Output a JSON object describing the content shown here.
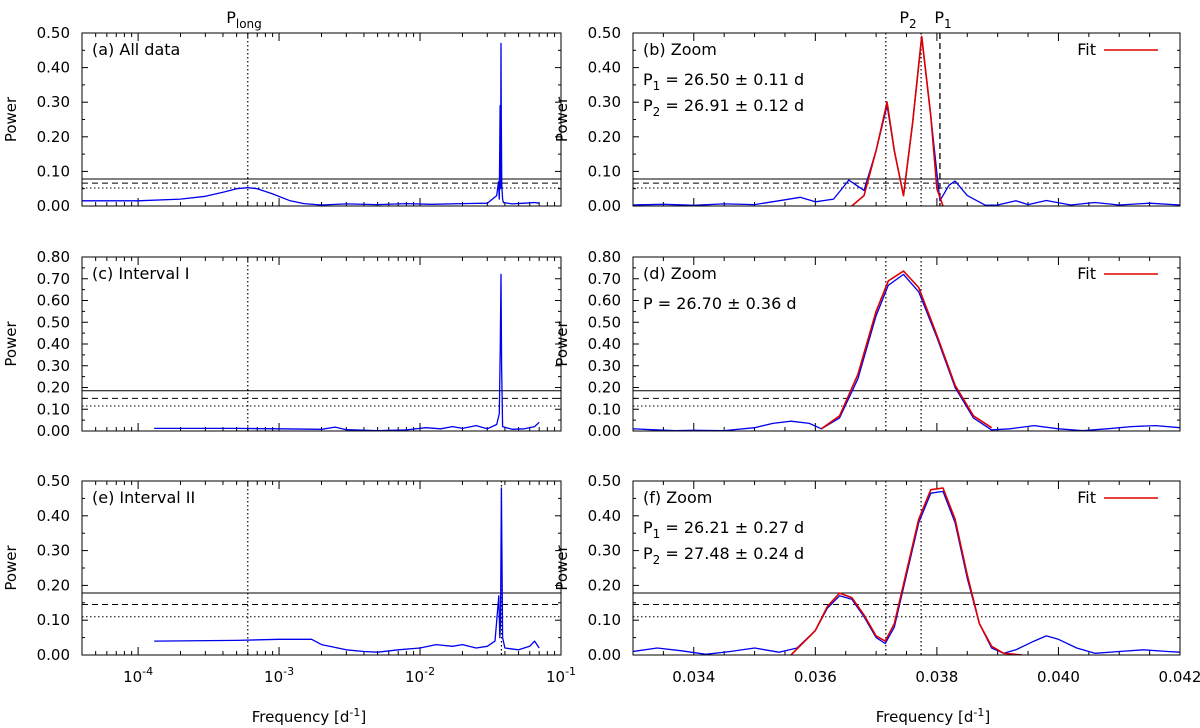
{
  "figure": {
    "top_labels": {
      "p_long": {
        "base": "P",
        "sub": "long"
      },
      "p2": {
        "base": "P",
        "sub": "2"
      },
      "p1": {
        "base": "P",
        "sub": "1"
      }
    },
    "xlabel": {
      "base": "Frequency [d",
      "sup": "-1",
      "tail": "]"
    }
  },
  "colors": {
    "periodogram": "#0000ee",
    "fit": "#dd0000",
    "axes": "#000000"
  },
  "chart_data": [
    {
      "id": "a",
      "type": "line",
      "xscale": "log",
      "label": "(a) All data",
      "ylabel": "Power",
      "xlim": [
        4e-05,
        0.1
      ],
      "ylim": [
        0,
        0.5
      ],
      "yticks": [
        "0.00",
        "0.10",
        "0.20",
        "0.30",
        "0.40",
        "0.50"
      ],
      "xticks": [],
      "xlabel": "",
      "thresholds": [
        0.078,
        0.066,
        0.052
      ],
      "vlines": [
        {
          "x": 0.0006,
          "style": "dotted"
        }
      ],
      "series": [
        {
          "name": "Periodogram",
          "color": "#0000ee",
          "x": [
            4e-05,
            0.0001,
            0.0002,
            0.0003,
            0.0004,
            0.0005,
            0.0006,
            0.0007,
            0.0009,
            0.0012,
            0.0015,
            0.002,
            0.003,
            0.005,
            0.008,
            0.012,
            0.02,
            0.03,
            0.035,
            0.036,
            0.0365,
            0.037,
            0.0373,
            0.0375,
            0.0377,
            0.038,
            0.0385,
            0.039,
            0.045,
            0.055,
            0.065,
            0.07
          ],
          "y": [
            0.015,
            0.015,
            0.02,
            0.028,
            0.04,
            0.05,
            0.053,
            0.05,
            0.035,
            0.015,
            0.007,
            0.003,
            0.006,
            0.004,
            0.007,
            0.005,
            0.007,
            0.008,
            0.03,
            0.07,
            0.02,
            0.29,
            0.05,
            0.47,
            0.25,
            0.06,
            0.02,
            0.01,
            0.006,
            0.008,
            0.01,
            0.008
          ]
        }
      ]
    },
    {
      "id": "b",
      "type": "line",
      "xscale": "linear",
      "label": "(b) Zoom",
      "ylabel": "Power",
      "xlim": [
        0.033,
        0.042
      ],
      "ylim": [
        0,
        0.5
      ],
      "yticks": [
        "0.00",
        "0.10",
        "0.20",
        "0.30",
        "0.40",
        "0.50"
      ],
      "xticks": [],
      "xlabel": "",
      "thresholds": [
        0.078,
        0.066,
        0.052
      ],
      "vlines": [
        {
          "x": 0.03716,
          "style": "dotted"
        },
        {
          "x": 0.03774,
          "style": "dotted"
        },
        {
          "x": 0.03805,
          "style": "dashed"
        }
      ],
      "legend": "Fit",
      "annotations": [
        {
          "base": "P",
          "sub": "1",
          "rest": " = 26.50 ± 0.11 d"
        },
        {
          "base": "P",
          "sub": "2",
          "rest": " = 26.91 ± 0.12 d"
        }
      ],
      "series": [
        {
          "name": "Periodogram",
          "color": "#0000ee",
          "x": [
            0.033,
            0.0335,
            0.034,
            0.0345,
            0.035,
            0.0355,
            0.03575,
            0.036,
            0.0363,
            0.03655,
            0.0368,
            0.037,
            0.03718,
            0.0373,
            0.03745,
            0.0376,
            0.03775,
            0.0379,
            0.03805,
            0.0382,
            0.0383,
            0.0385,
            0.0388,
            0.039,
            0.0393,
            0.0395,
            0.0398,
            0.0402,
            0.0406,
            0.041,
            0.0415,
            0.042
          ],
          "y": [
            0.003,
            0.005,
            0.002,
            0.006,
            0.004,
            0.018,
            0.025,
            0.012,
            0.02,
            0.075,
            0.045,
            0.16,
            0.29,
            0.16,
            0.03,
            0.24,
            0.49,
            0.26,
            0.015,
            0.06,
            0.072,
            0.03,
            0.002,
            0.003,
            0.015,
            0.004,
            0.016,
            0.003,
            0.01,
            0.003,
            0.008,
            0.003
          ]
        },
        {
          "name": "Fit",
          "color": "#dd0000",
          "x": [
            0.0366,
            0.0368,
            0.037,
            0.03718,
            0.0373,
            0.03745,
            0.0376,
            0.03775,
            0.0379,
            0.038,
            0.0381
          ],
          "y": [
            0.0,
            0.03,
            0.16,
            0.3,
            0.16,
            0.03,
            0.24,
            0.49,
            0.26,
            0.05,
            0.0
          ]
        }
      ]
    },
    {
      "id": "c",
      "type": "line",
      "xscale": "log",
      "label": "(c) Interval I",
      "ylabel": "Power",
      "xlim": [
        4e-05,
        0.1
      ],
      "ylim": [
        0,
        0.8
      ],
      "yticks": [
        "0.00",
        "0.10",
        "0.20",
        "0.30",
        "0.40",
        "0.50",
        "0.60",
        "0.70",
        "0.80"
      ],
      "xticks": [],
      "xlabel": "",
      "thresholds": [
        0.185,
        0.15,
        0.115
      ],
      "vlines": [
        {
          "x": 0.0006,
          "style": "dotted"
        }
      ],
      "series": [
        {
          "name": "Periodogram",
          "color": "#0000ee",
          "x": [
            0.00013,
            0.0005,
            0.001,
            0.002,
            0.0025,
            0.003,
            0.005,
            0.008,
            0.011,
            0.014,
            0.017,
            0.02,
            0.025,
            0.03,
            0.035,
            0.0365,
            0.0371,
            0.0375,
            0.0379,
            0.0385,
            0.045,
            0.055,
            0.065,
            0.07
          ],
          "y": [
            0.012,
            0.012,
            0.01,
            0.008,
            0.018,
            0.006,
            0.002,
            0.005,
            0.015,
            0.01,
            0.02,
            0.012,
            0.025,
            0.01,
            0.03,
            0.08,
            0.4,
            0.72,
            0.3,
            0.02,
            0.008,
            0.01,
            0.02,
            0.04
          ]
        }
      ]
    },
    {
      "id": "d",
      "type": "line",
      "xscale": "linear",
      "label": "(d) Zoom",
      "ylabel": "Power",
      "xlim": [
        0.033,
        0.042
      ],
      "ylim": [
        0,
        0.8
      ],
      "yticks": [
        "0.00",
        "0.10",
        "0.20",
        "0.30",
        "0.40",
        "0.50",
        "0.60",
        "0.70",
        "0.80"
      ],
      "xticks": [],
      "xlabel": "",
      "thresholds": [
        0.185,
        0.15,
        0.115
      ],
      "vlines": [
        {
          "x": 0.03716,
          "style": "dotted"
        },
        {
          "x": 0.03774,
          "style": "dotted"
        }
      ],
      "legend": "Fit",
      "annotations": [
        {
          "base": "P",
          "sub": "",
          "rest": " = 26.70 ± 0.36 d"
        }
      ],
      "series": [
        {
          "name": "Periodogram",
          "color": "#0000ee",
          "x": [
            0.033,
            0.0333,
            0.0337,
            0.034,
            0.0345,
            0.035,
            0.0353,
            0.0356,
            0.0359,
            0.0361,
            0.0364,
            0.0367,
            0.037,
            0.0372,
            0.03745,
            0.0377,
            0.038,
            0.0383,
            0.0386,
            0.0389,
            0.0392,
            0.0396,
            0.04,
            0.0404,
            0.0408,
            0.0412,
            0.0416,
            0.042
          ],
          "y": [
            0.01,
            0.006,
            0.002,
            0.003,
            0.002,
            0.015,
            0.035,
            0.045,
            0.035,
            0.01,
            0.06,
            0.24,
            0.53,
            0.67,
            0.72,
            0.64,
            0.43,
            0.2,
            0.06,
            0.005,
            0.01,
            0.025,
            0.01,
            0.002,
            0.01,
            0.02,
            0.025,
            0.015
          ]
        },
        {
          "name": "Fit",
          "color": "#dd0000",
          "x": [
            0.0361,
            0.0364,
            0.0367,
            0.037,
            0.0372,
            0.03745,
            0.0377,
            0.038,
            0.0383,
            0.0386,
            0.0389
          ],
          "y": [
            0.01,
            0.07,
            0.26,
            0.55,
            0.69,
            0.735,
            0.66,
            0.44,
            0.21,
            0.07,
            0.015
          ]
        }
      ]
    },
    {
      "id": "e",
      "type": "line",
      "xscale": "log",
      "label": "(e) Interval II",
      "ylabel": "Power",
      "xlim": [
        4e-05,
        0.1
      ],
      "ylim": [
        0,
        0.5
      ],
      "yticks": [
        "0.00",
        "0.10",
        "0.20",
        "0.30",
        "0.40",
        "0.50"
      ],
      "xticks": [
        "10-4",
        "10-3",
        "10-2",
        "10-1"
      ],
      "xlabel": "Frequency",
      "thresholds": [
        0.178,
        0.145,
        0.11
      ],
      "vlines": [
        {
          "x": 0.0006,
          "style": "dotted"
        },
        {
          "x": 0.0378,
          "style": "dotted"
        }
      ],
      "series": [
        {
          "name": "Periodogram",
          "color": "#0000ee",
          "x": [
            0.00013,
            0.0005,
            0.001,
            0.0017,
            0.002,
            0.003,
            0.004,
            0.005,
            0.007,
            0.01,
            0.013,
            0.017,
            0.02,
            0.025,
            0.03,
            0.034,
            0.0362,
            0.0368,
            0.0372,
            0.0378,
            0.0385,
            0.04,
            0.05,
            0.06,
            0.065,
            0.07
          ],
          "y": [
            0.04,
            0.042,
            0.045,
            0.045,
            0.03,
            0.015,
            0.01,
            0.008,
            0.015,
            0.02,
            0.03,
            0.025,
            0.03,
            0.02,
            0.025,
            0.04,
            0.17,
            0.05,
            0.09,
            0.48,
            0.05,
            0.02,
            0.015,
            0.025,
            0.04,
            0.02
          ]
        }
      ]
    },
    {
      "id": "f",
      "type": "line",
      "xscale": "linear",
      "label": "(f) Zoom",
      "ylabel": "Power",
      "xlim": [
        0.033,
        0.042
      ],
      "ylim": [
        0,
        0.5
      ],
      "yticks": [
        "0.00",
        "0.10",
        "0.20",
        "0.30",
        "0.40",
        "0.50"
      ],
      "xticks": [
        "0.034",
        "0.036",
        "0.038",
        "0.040",
        "0.042"
      ],
      "xlabel": "Frequency",
      "thresholds": [
        0.178,
        0.145,
        0.11
      ],
      "vlines": [
        {
          "x": 0.03716,
          "style": "dotted"
        },
        {
          "x": 0.03774,
          "style": "dotted"
        }
      ],
      "legend": "Fit",
      "annotations": [
        {
          "base": "P",
          "sub": "1",
          "rest": " = 26.21 ± 0.27 d"
        },
        {
          "base": "P",
          "sub": "2",
          "rest": " = 27.48 ± 0.24 d"
        }
      ],
      "series": [
        {
          "name": "Periodogram",
          "color": "#0000ee",
          "x": [
            0.033,
            0.0334,
            0.0338,
            0.0342,
            0.0346,
            0.035,
            0.0354,
            0.0357,
            0.036,
            0.0362,
            0.0364,
            0.0366,
            0.0368,
            0.037,
            0.03715,
            0.0373,
            0.0375,
            0.0377,
            0.0379,
            0.0381,
            0.0383,
            0.0385,
            0.0387,
            0.0389,
            0.0391,
            0.0393,
            0.0396,
            0.0398,
            0.04,
            0.0403,
            0.0406,
            0.041,
            0.0414,
            0.0418,
            0.042
          ],
          "y": [
            0.01,
            0.02,
            0.012,
            0.002,
            0.01,
            0.02,
            0.008,
            0.02,
            0.07,
            0.135,
            0.17,
            0.16,
            0.11,
            0.05,
            0.033,
            0.08,
            0.23,
            0.38,
            0.465,
            0.47,
            0.38,
            0.22,
            0.09,
            0.02,
            0.005,
            0.015,
            0.04,
            0.055,
            0.045,
            0.02,
            0.005,
            0.01,
            0.015,
            0.01,
            0.008
          ]
        },
        {
          "name": "Fit",
          "color": "#dd0000",
          "x": [
            0.0356,
            0.036,
            0.0362,
            0.0364,
            0.0366,
            0.0368,
            0.037,
            0.03715,
            0.0373,
            0.0375,
            0.0377,
            0.0379,
            0.0381,
            0.0383,
            0.0385,
            0.0387,
            0.0389,
            0.0391,
            0.0394
          ],
          "y": [
            0.0,
            0.07,
            0.14,
            0.178,
            0.165,
            0.115,
            0.055,
            0.04,
            0.09,
            0.24,
            0.39,
            0.475,
            0.48,
            0.39,
            0.23,
            0.09,
            0.025,
            0.005,
            0.0
          ]
        }
      ]
    }
  ]
}
